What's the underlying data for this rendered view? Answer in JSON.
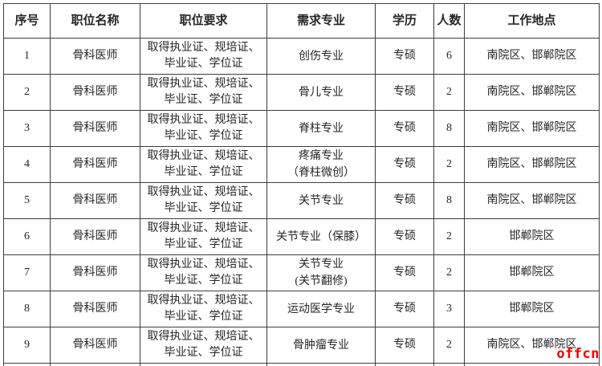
{
  "table": {
    "headers": [
      "序号",
      "职位名称",
      "职位要求",
      "需求专业",
      "学历",
      "人数",
      "工作地点"
    ],
    "rows": [
      {
        "seq": "1",
        "title": "骨科医师",
        "requirement": "取得执业证、规培证、毕业证、学位证",
        "major": [
          "创伤专业"
        ],
        "degree": "专硕",
        "count": "6",
        "location": "南院区、邯郸院区"
      },
      {
        "seq": "2",
        "title": "骨科医师",
        "requirement": "取得执业证、规培证、毕业证、学位证",
        "major": [
          "骨儿专业"
        ],
        "degree": "专硕",
        "count": "2",
        "location": "南院区、邯郸院区"
      },
      {
        "seq": "3",
        "title": "骨科医师",
        "requirement": "取得执业证、规培证、毕业证、学位证",
        "major": [
          "脊柱专业"
        ],
        "degree": "专硕",
        "count": "8",
        "location": "南院区、邯郸院区"
      },
      {
        "seq": "4",
        "title": "骨科医师",
        "requirement": "取得执业证、规培证、毕业证、学位证",
        "major": [
          "疼痛专业",
          "（脊柱微创）"
        ],
        "degree": "专硕",
        "count": "2",
        "location": "南院区、邯郸院区"
      },
      {
        "seq": "5",
        "title": "骨科医师",
        "requirement": "取得执业证、规培证、毕业证、学位证",
        "major": [
          "关节专业"
        ],
        "degree": "专硕",
        "count": "8",
        "location": "南院区、邯郸院区"
      },
      {
        "seq": "6",
        "title": "骨科医师",
        "requirement": "取得执业证、规培证、毕业证、学位证",
        "major": [
          "关节专业（保膝）"
        ],
        "degree": "专硕",
        "count": "2",
        "location": "邯郸院区"
      },
      {
        "seq": "7",
        "title": "骨科医师",
        "requirement": "取得执业证、规培证、毕业证、学位证",
        "major": [
          "关节专业",
          "(关节翻修)"
        ],
        "degree": "专硕",
        "count": "2",
        "location": "邯郸院区"
      },
      {
        "seq": "8",
        "title": "骨科医师",
        "requirement": "取得执业证、规培证、毕业证、学位证",
        "major": [
          "运动医学专业"
        ],
        "degree": "专硕",
        "count": "3",
        "location": "邯郸院区"
      },
      {
        "seq": "9",
        "title": "骨科医师",
        "requirement": "取得执业证、规培证、毕业证、学位证",
        "major": [
          "骨肿瘤专业"
        ],
        "degree": "专硕",
        "count": "2",
        "location": "南院区、邯郸院区"
      }
    ]
  },
  "watermark": {
    "text": "offcn",
    "color": "#f30000"
  }
}
